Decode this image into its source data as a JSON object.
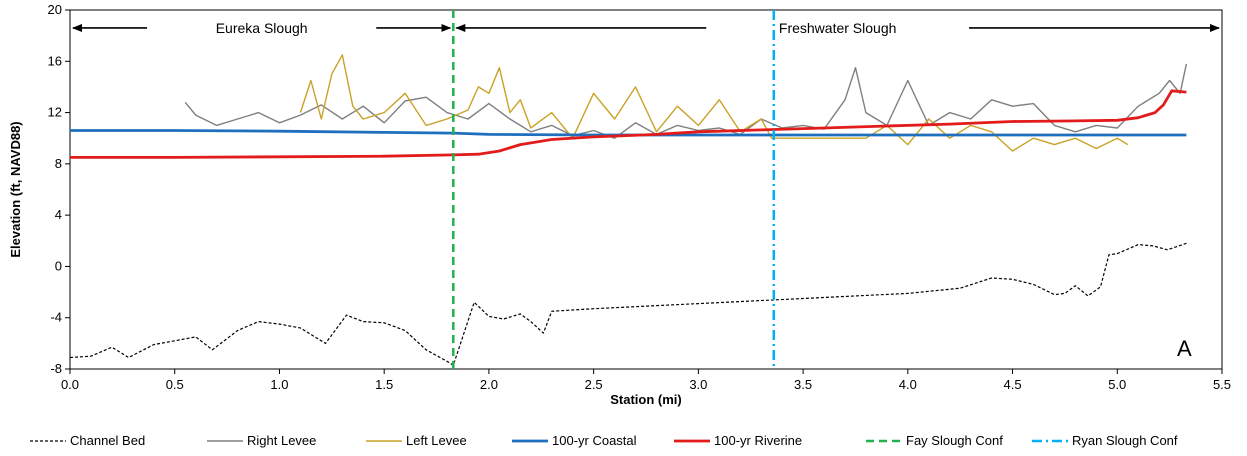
{
  "chart_data": {
    "type": "line",
    "xlabel": "Station (mi)",
    "ylabel": "Elevation (ft, NAVD88)",
    "xlim": [
      0,
      5.5
    ],
    "ylim": [
      -8,
      20
    ],
    "xticks": [
      "0.0",
      "0.5",
      "1.0",
      "1.5",
      "2.0",
      "2.5",
      "3.0",
      "3.5",
      "4.0",
      "4.5",
      "5.0",
      "5.5"
    ],
    "yticks": [
      "-8",
      "-4",
      "0",
      "4",
      "8",
      "12",
      "16",
      "20"
    ],
    "grid": false,
    "legend_position": "bottom",
    "panel_label": "A",
    "regions": [
      {
        "label": "Eureka Slough",
        "x_start": 0.0,
        "x_end": 1.83
      },
      {
        "label": "Freshwater Slough",
        "x_start": 1.83,
        "x_end": 5.5
      }
    ],
    "vlines": [
      {
        "name": "Fay Slough Conf",
        "x": 1.83,
        "color": "#22b14c",
        "style": "dashed"
      },
      {
        "name": "Ryan Slough Conf",
        "x": 3.36,
        "color": "#00b0f0",
        "style": "dashdot"
      }
    ],
    "series": [
      {
        "name": "Channel Bed",
        "color": "#000000",
        "style": "dotted",
        "x": [
          0.0,
          0.1,
          0.2,
          0.28,
          0.4,
          0.5,
          0.6,
          0.68,
          0.8,
          0.9,
          1.0,
          1.1,
          1.22,
          1.32,
          1.4,
          1.5,
          1.6,
          1.7,
          1.8,
          1.83,
          1.93,
          2.0,
          2.07,
          2.15,
          2.2,
          2.26,
          2.3,
          2.5,
          3.0,
          3.5,
          4.0,
          4.25,
          4.4,
          4.5,
          4.6,
          4.7,
          4.75,
          4.8,
          4.86,
          4.92,
          4.96,
          5.0,
          5.1,
          5.17,
          5.24,
          5.33
        ],
        "y": [
          -7.1,
          -7.0,
          -6.3,
          -7.1,
          -6.1,
          -5.8,
          -5.5,
          -6.5,
          -5.0,
          -4.3,
          -4.5,
          -4.8,
          -6.0,
          -3.8,
          -4.3,
          -4.4,
          -5.0,
          -6.5,
          -7.4,
          -7.7,
          -2.8,
          -3.9,
          -4.1,
          -3.7,
          -4.3,
          -5.2,
          -3.5,
          -3.3,
          -2.9,
          -2.5,
          -2.1,
          -1.7,
          -0.9,
          -1.0,
          -1.4,
          -2.2,
          -2.1,
          -1.5,
          -2.3,
          -1.6,
          0.9,
          1.0,
          1.7,
          1.6,
          1.3,
          1.8
        ]
      },
      {
        "name": "Right Levee",
        "color": "#7f7f7f",
        "style": "solid",
        "x": [
          0.55,
          0.6,
          0.7,
          0.8,
          0.9,
          1.0,
          1.1,
          1.2,
          1.3,
          1.4,
          1.5,
          1.6,
          1.7,
          1.8,
          1.9,
          2.0,
          2.1,
          2.2,
          2.3,
          2.4,
          2.5,
          2.6,
          2.7,
          2.8,
          2.9,
          3.0,
          3.1,
          3.2,
          3.3,
          3.4,
          3.5,
          3.6,
          3.7,
          3.75,
          3.8,
          3.9,
          4.0,
          4.1,
          4.2,
          4.3,
          4.4,
          4.5,
          4.6,
          4.7,
          4.8,
          4.9,
          5.0,
          5.1,
          5.2,
          5.25,
          5.3,
          5.33
        ],
        "y": [
          12.8,
          11.8,
          11.0,
          11.5,
          12.0,
          11.2,
          11.8,
          12.6,
          11.5,
          12.5,
          11.2,
          12.9,
          13.2,
          12.0,
          11.5,
          12.7,
          11.5,
          10.5,
          11.0,
          10.2,
          10.6,
          10.0,
          11.2,
          10.3,
          11.0,
          10.6,
          10.8,
          10.3,
          11.5,
          10.8,
          11.0,
          10.7,
          13.0,
          15.5,
          12.0,
          11.0,
          14.5,
          11.0,
          12.0,
          11.5,
          13.0,
          12.5,
          12.7,
          11.0,
          10.5,
          11.0,
          10.8,
          12.5,
          13.5,
          14.5,
          13.5,
          15.8
        ]
      },
      {
        "name": "Left Levee",
        "color": "#c9a227",
        "style": "solid",
        "x": [
          1.1,
          1.15,
          1.2,
          1.25,
          1.3,
          1.35,
          1.4,
          1.5,
          1.6,
          1.7,
          1.8,
          1.9,
          1.95,
          2.0,
          2.05,
          2.1,
          2.15,
          2.2,
          2.3,
          2.4,
          2.5,
          2.6,
          2.7,
          2.8,
          2.9,
          3.0,
          3.1,
          3.2,
          3.3,
          3.35,
          3.8,
          3.9,
          4.0,
          4.1,
          4.2,
          4.3,
          4.4,
          4.5,
          4.6,
          4.7,
          4.8,
          4.9,
          5.0,
          5.05
        ],
        "y": [
          12.0,
          14.5,
          11.5,
          15.0,
          16.5,
          12.5,
          11.5,
          12.0,
          13.5,
          11.0,
          11.5,
          12.2,
          14.0,
          13.5,
          15.5,
          12.0,
          13.0,
          10.8,
          12.0,
          10.0,
          13.5,
          11.5,
          14.0,
          10.5,
          12.5,
          11.0,
          13.0,
          10.5,
          11.5,
          10.0,
          10.0,
          11.0,
          9.5,
          11.5,
          10.0,
          11.0,
          10.5,
          9.0,
          10.0,
          9.5,
          10.0,
          9.2,
          10.0,
          9.5
        ]
      },
      {
        "name": "100-yr Coastal",
        "color": "#1f6fbf",
        "style": "solid",
        "x": [
          0.0,
          0.25,
          0.5,
          1.0,
          1.5,
          1.83,
          2.0,
          2.5,
          3.0,
          3.5,
          4.0,
          4.5,
          5.0,
          5.33
        ],
        "y": [
          10.6,
          10.6,
          10.6,
          10.55,
          10.45,
          10.4,
          10.3,
          10.25,
          10.25,
          10.25,
          10.25,
          10.25,
          10.25,
          10.25
        ]
      },
      {
        "name": "100-yr Riverine",
        "color": "#e21b1b",
        "style": "solid",
        "x": [
          0.0,
          0.5,
          1.0,
          1.5,
          1.83,
          1.95,
          2.05,
          2.15,
          2.3,
          2.5,
          2.8,
          3.0,
          3.3,
          3.6,
          3.9,
          4.2,
          4.5,
          4.8,
          5.0,
          5.1,
          5.18,
          5.22,
          5.26,
          5.33
        ],
        "y": [
          8.5,
          8.5,
          8.55,
          8.6,
          8.7,
          8.75,
          9.0,
          9.5,
          9.9,
          10.1,
          10.3,
          10.5,
          10.65,
          10.8,
          10.95,
          11.1,
          11.3,
          11.35,
          11.4,
          11.6,
          12.0,
          12.6,
          13.7,
          13.6
        ]
      }
    ]
  },
  "legend": {
    "items": [
      {
        "label": "Channel Bed",
        "color": "#000000",
        "style": "dotted"
      },
      {
        "label": "Right Levee",
        "color": "#7f7f7f",
        "style": "solid"
      },
      {
        "label": "Left Levee",
        "color": "#c9a227",
        "style": "solid"
      },
      {
        "label": "100-yr Coastal",
        "color": "#1f6fbf",
        "style": "solid"
      },
      {
        "label": "100-yr Riverine",
        "color": "#e21b1b",
        "style": "solid"
      },
      {
        "label": "Fay Slough Conf",
        "color": "#22b14c",
        "style": "dashed"
      },
      {
        "label": "Ryan Slough Conf",
        "color": "#00b0f0",
        "style": "dashdot"
      }
    ]
  }
}
